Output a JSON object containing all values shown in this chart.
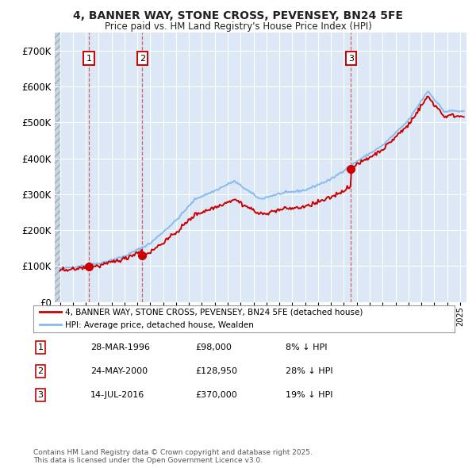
{
  "title1": "4, BANNER WAY, STONE CROSS, PEVENSEY, BN24 5FE",
  "title2": "Price paid vs. HM Land Registry's House Price Index (HPI)",
  "bg_color": "#ffffff",
  "plot_bg_color": "#dce8f5",
  "grid_color": "#ffffff",
  "hpi_color": "#88bbee",
  "price_color": "#cc0000",
  "purchase_dates": [
    1996.24,
    2000.39,
    2016.54
  ],
  "purchase_prices": [
    98000,
    128950,
    370000
  ],
  "purchase_labels": [
    "1",
    "2",
    "3"
  ],
  "legend_property_label": "4, BANNER WAY, STONE CROSS, PEVENSEY, BN24 5FE (detached house)",
  "legend_hpi_label": "HPI: Average price, detached house, Wealden",
  "table_entries": [
    {
      "num": "1",
      "date": "28-MAR-1996",
      "price": "£98,000",
      "note": "8% ↓ HPI"
    },
    {
      "num": "2",
      "date": "24-MAY-2000",
      "price": "£128,950",
      "note": "28% ↓ HPI"
    },
    {
      "num": "3",
      "date": "14-JUL-2016",
      "price": "£370,000",
      "note": "19% ↓ HPI"
    }
  ],
  "footer": "Contains HM Land Registry data © Crown copyright and database right 2025.\nThis data is licensed under the Open Government Licence v3.0.",
  "ylim": [
    0,
    750000
  ],
  "xlim_start": 1993.6,
  "xlim_end": 2025.5,
  "yticks": [
    0,
    100000,
    200000,
    300000,
    400000,
    500000,
    600000,
    700000
  ],
  "ytick_labels": [
    "£0",
    "£100K",
    "£200K",
    "£300K",
    "£400K",
    "£500K",
    "£600K",
    "£700K"
  ],
  "hatch_end": 1994.0
}
